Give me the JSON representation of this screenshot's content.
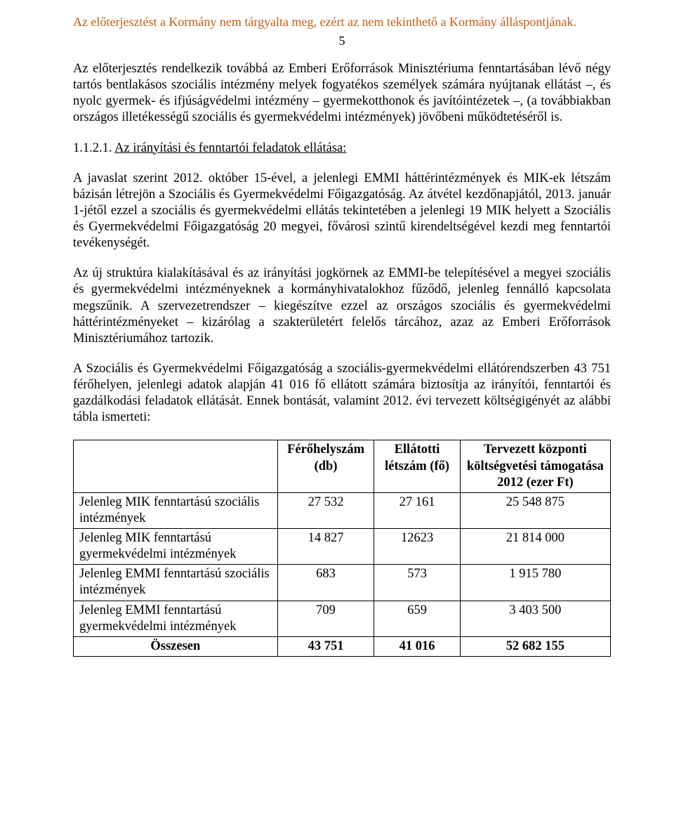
{
  "disclaimer": "Az előterjesztést a Kormány nem tárgyalta meg, ezért az nem tekinthető a Kormány álláspontjának.",
  "page_number": "5",
  "para1": "Az előterjesztés rendelkezik továbbá az Emberi Erőforrások Minisztériuma fenntartásában lévő négy tartós bentlakásos szociális intézmény melyek fogyatékos személyek számára nyújtanak ellátást –, és nyolc gyermek- és ifjúságvédelmi intézmény – gyermekotthonok és javítóintézetek –, (a továbbiakban országos illetékességű szociális és gyermekvédelmi intézmények) jövőbeni működtetéséről is.",
  "heading_prefix": "1.1.2.1. ",
  "heading_underline": "Az irányítási és fenntartói feladatok ellátása:",
  "para2": "A javaslat szerint 2012. október 15-ével, a jelenlegi EMMI háttérintézmények és MIK-ek létszám bázisán létrejön a Szociális és Gyermekvédelmi Főigazgatóság. Az átvétel kezdőnapjától, 2013. január 1-jétől ezzel a szociális és gyermekvédelmi ellátás tekintetében a jelenlegi 19 MIK helyett a Szociális és Gyermekvédelmi Főigazgatóság 20 megyei, fővárosi szintű kirendeltségével kezdi meg fenntartói tevékenységét.",
  "para3": "Az új struktúra kialakításával és az irányítási jogkörnek az EMMI-be telepítésével a megyei szociális és gyermekvédelmi intézményeknek a kormányhivatalokhoz fűződő, jelenleg fennálló kapcsolata megszűnik. A szervezetrendszer – kiegészítve ezzel az országos szociális és gyermekvédelmi háttérintézményeket – kizárólag a szakterületért felelős tárcához, azaz az Emberi Erőforrások Minisztériumához tartozik.",
  "para4": "A Szociális és Gyermekvédelmi Főigazgatóság a szociális-gyermekvédelmi ellátórendszerben 43 751 férőhelyen, jelenlegi adatok alapján 41 016 fő ellátott számára biztosítja az irányítói, fenntartói és gazdálkodási feladatok ellátását. Ennek bontását, valamint 2012. évi tervezett költségigényét az alábbi tábla ismerteti:",
  "table": {
    "headers": {
      "col1": "",
      "col2": "Férőhelyszám (db)",
      "col3": "Ellátotti létszám (fő)",
      "col4": "Tervezett központi költségvetési támogatása 2012 (ezer Ft)"
    },
    "rows": [
      {
        "label": "Jelenleg MIK fenntartású szociális intézmények",
        "a": "27 532",
        "b": "27 161",
        "c": "25 548 875"
      },
      {
        "label": "Jelenleg MIK fenntartású gyermekvédelmi intézmények",
        "a": "14 827",
        "b": "12623",
        "c": "21 814 000"
      },
      {
        "label": "Jelenleg EMMI fenntartású szociális intézmények",
        "a": "683",
        "b": "573",
        "c": "1 915 780"
      },
      {
        "label": "Jelenleg EMMI fenntartású gyermekvédelmi intézmények",
        "a": "709",
        "b": "659",
        "c": "3 403 500"
      }
    ],
    "total": {
      "label": "Összesen",
      "a": "43 751",
      "b": "41 016",
      "c": "52 682 155"
    }
  }
}
